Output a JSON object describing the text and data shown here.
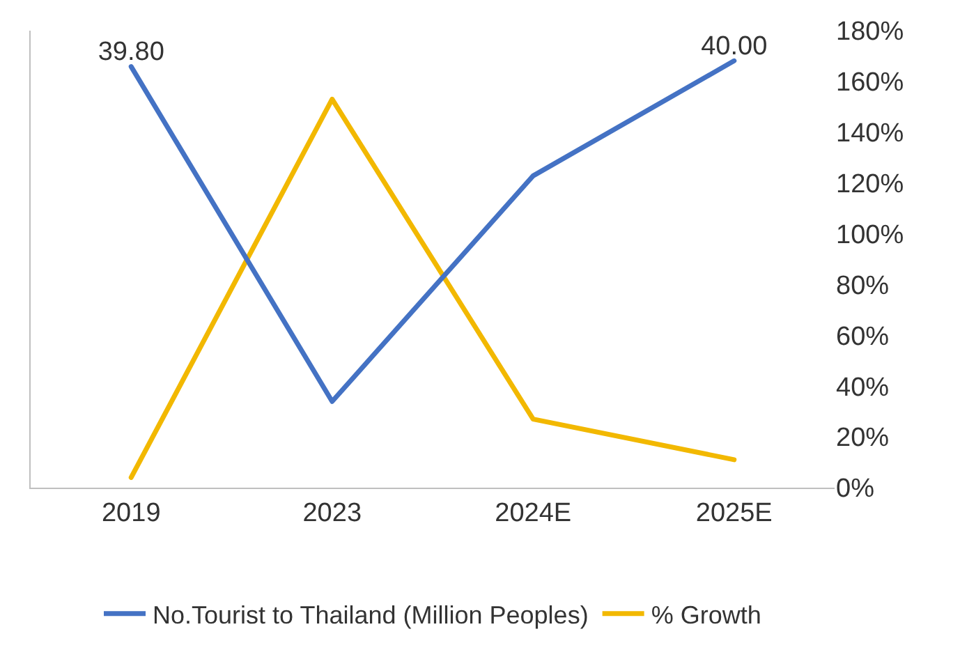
{
  "chart_data": {
    "type": "line",
    "categories": [
      "2019",
      "2023",
      "2024E",
      "2025E"
    ],
    "series": [
      {
        "name": "No.Tourist to Thailand (Million Peoples)",
        "color": "#4472c4",
        "axis": "y2",
        "values": [
          39.8,
          28.15,
          36.0,
          40.0
        ],
        "value_labels": [
          "39.80",
          null,
          null,
          "40.00"
        ]
      },
      {
        "name": "% Growth",
        "color": "#f2b800",
        "values": [
          4,
          153,
          27,
          11
        ]
      }
    ],
    "y2lim": [
      25.15,
      41.05
    ],
    "ylim": [
      0,
      180
    ],
    "yticks": [
      {
        "value": 0,
        "label": "0%"
      },
      {
        "value": 20,
        "label": "20%"
      },
      {
        "value": 40,
        "label": "40%"
      },
      {
        "value": 60,
        "label": "60%"
      },
      {
        "value": 80,
        "label": "80%"
      },
      {
        "value": 100,
        "label": "100%"
      },
      {
        "value": 120,
        "label": "120%"
      },
      {
        "value": 140,
        "label": "140%"
      },
      {
        "value": 160,
        "label": "160%"
      },
      {
        "value": 180,
        "label": "180%"
      }
    ],
    "legend": "bottom",
    "marker": "none",
    "line_style": "solid"
  }
}
